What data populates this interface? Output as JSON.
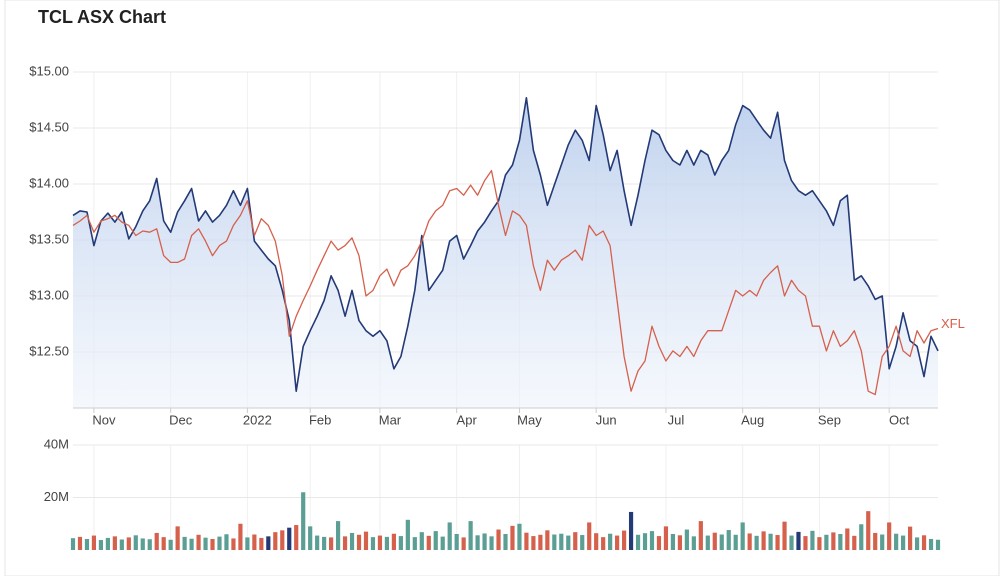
{
  "chart_data": [
    {
      "type": "line",
      "title": "TCL ASX Chart",
      "xlim": [
        0,
        124
      ],
      "xticks": [
        {
          "value": 3,
          "label": "Nov"
        },
        {
          "value": 14,
          "label": "Dec"
        },
        {
          "value": 25,
          "label": "2022"
        },
        {
          "value": 34,
          "label": "Feb"
        },
        {
          "value": 44,
          "label": "Mar"
        },
        {
          "value": 55,
          "label": "Apr"
        },
        {
          "value": 64,
          "label": "May"
        },
        {
          "value": 75,
          "label": "Jun"
        },
        {
          "value": 85,
          "label": "Jul"
        },
        {
          "value": 96,
          "label": "Aug"
        },
        {
          "value": 107,
          "label": "Sep"
        },
        {
          "value": 117,
          "label": "Oct"
        }
      ],
      "ylim": [
        12,
        15
      ],
      "yticks": [
        {
          "value": 12.5,
          "label": "$12.50"
        },
        {
          "value": 13,
          "label": "$13.00"
        },
        {
          "value": 13.5,
          "label": "$13.50"
        },
        {
          "value": 14,
          "label": "$14.00"
        },
        {
          "value": 14.5,
          "label": "$14.50"
        },
        {
          "value": 15,
          "label": "$15.00"
        }
      ],
      "grid": true,
      "series": [
        {
          "color": "#233a77",
          "fill": "#c7d6ef",
          "values": [
            13.72,
            13.76,
            13.75,
            13.45,
            13.67,
            13.74,
            13.66,
            13.75,
            13.51,
            13.62,
            13.76,
            13.85,
            14.05,
            13.67,
            13.57,
            13.75,
            13.85,
            13.96,
            13.67,
            13.76,
            13.66,
            13.72,
            13.81,
            13.94,
            13.81,
            13.96,
            13.49,
            13.41,
            13.33,
            13.27,
            13.05,
            12.78,
            12.15,
            12.55,
            12.69,
            12.82,
            12.96,
            13.18,
            13.05,
            12.82,
            13.05,
            12.78,
            12.69,
            12.64,
            12.69,
            12.6,
            12.35,
            12.46,
            12.73,
            13.05,
            13.54,
            13.05,
            13.14,
            13.23,
            13.49,
            13.54,
            13.33,
            13.45,
            13.58,
            13.66,
            13.76,
            13.85,
            14.08,
            14.17,
            14.39,
            14.77,
            14.3,
            14.08,
            13.81,
            13.99,
            14.17,
            14.35,
            14.48,
            14.39,
            14.21,
            14.7,
            14.44,
            14.12,
            14.3,
            13.94,
            13.63,
            13.9,
            14.21,
            14.48,
            14.44,
            14.3,
            14.21,
            14.17,
            14.3,
            14.17,
            14.3,
            14.26,
            14.08,
            14.21,
            14.3,
            14.53,
            14.7,
            14.66,
            14.57,
            14.48,
            14.41,
            14.64,
            14.21,
            14.03,
            13.94,
            13.9,
            13.94,
            13.85,
            13.76,
            13.63,
            13.85,
            13.9,
            13.14,
            13.18,
            13.09,
            12.97,
            13.0,
            12.35,
            12.55,
            12.85,
            12.6,
            12.55,
            12.28,
            12.64,
            12.51
          ]
        },
        {
          "name": "XFL",
          "color": "#d5604c",
          "values": [
            13.63,
            13.67,
            13.72,
            13.57,
            13.67,
            13.69,
            13.72,
            13.66,
            13.63,
            13.54,
            13.58,
            13.57,
            13.6,
            13.36,
            13.3,
            13.3,
            13.33,
            13.54,
            13.6,
            13.49,
            13.36,
            13.45,
            13.49,
            13.63,
            13.72,
            13.85,
            13.54,
            13.69,
            13.63,
            13.49,
            13.18,
            12.64,
            12.82,
            12.96,
            13.09,
            13.23,
            13.36,
            13.49,
            13.41,
            13.45,
            13.52,
            13.36,
            13.0,
            13.05,
            13.18,
            13.24,
            13.09,
            13.23,
            13.27,
            13.36,
            13.49,
            13.67,
            13.76,
            13.81,
            13.94,
            13.96,
            13.9,
            13.99,
            13.9,
            14.03,
            14.12,
            13.81,
            13.54,
            13.76,
            13.72,
            13.63,
            13.27,
            13.05,
            13.32,
            13.23,
            13.32,
            13.36,
            13.41,
            13.32,
            13.63,
            13.54,
            13.58,
            13.45,
            12.96,
            12.46,
            12.15,
            12.33,
            12.42,
            12.73,
            12.55,
            12.42,
            12.51,
            12.46,
            12.55,
            12.46,
            12.6,
            12.69,
            12.69,
            12.69,
            12.87,
            13.05,
            13.0,
            13.05,
            13.0,
            13.14,
            13.21,
            13.27,
            13.0,
            13.14,
            13.05,
            13.0,
            12.73,
            12.73,
            12.51,
            12.69,
            12.55,
            12.6,
            12.69,
            12.51,
            12.15,
            12.12,
            12.46,
            12.55,
            12.73,
            12.51,
            12.46,
            12.69,
            12.58,
            12.69,
            12.71
          ]
        }
      ]
    },
    {
      "type": "bar",
      "ylim": [
        0,
        40000000
      ],
      "yticks": [
        {
          "value": 20000000,
          "label": "20M"
        },
        {
          "value": 40000000,
          "label": "40M"
        }
      ],
      "grid": true,
      "values": [
        4500000,
        5000000,
        4200000,
        5500000,
        3800000,
        4600000,
        5200000,
        4000000,
        4800000,
        5600000,
        4400000,
        4100000,
        6500000,
        4900000,
        3900000,
        9000000,
        5000000,
        4300000,
        5800000,
        4700000,
        4200000,
        5100000,
        6000000,
        4400000,
        10000000,
        4800000,
        5900000,
        4600000,
        5200000,
        6800000,
        7500000,
        8500000,
        9500000,
        22000000,
        9000000,
        5500000,
        5000000,
        4800000,
        11000000,
        5200000,
        6500000,
        5800000,
        7000000,
        4900000,
        5500000,
        5000000,
        6200000,
        5300000,
        11500000,
        4900000,
        6800000,
        5400000,
        7200000,
        5100000,
        10500000,
        6100000,
        4800000,
        11000000,
        5600000,
        6300000,
        5200000,
        7800000,
        6100000,
        9200000,
        10000000,
        6600000,
        5300000,
        5800000,
        7500000,
        5900000,
        6200000,
        5500000,
        6800000,
        5700000,
        10500000,
        6400000,
        4900000,
        6200000,
        5500000,
        7400000,
        14500000,
        5800000,
        6400000,
        7200000,
        5300000,
        9000000,
        6100000,
        5600000,
        7800000,
        5200000,
        11000000,
        5500000,
        6600000,
        5900000,
        7600000,
        5800000,
        10500000,
        6300000,
        5400000,
        7100000,
        6200000,
        5700000,
        10800000,
        5500000,
        6900000,
        5300000,
        7300000,
        4900000,
        5800000,
        6700000,
        6100000,
        8200000,
        5400000,
        9800000,
        14800000,
        6500000,
        5900000,
        10500000,
        6200000,
        5500000,
        8900000,
        4800000,
        5600000,
        4200000,
        3900000
      ],
      "colors": [
        "#5a9e94",
        "#d5604c",
        "#5a9e94",
        "#d5604c",
        "#5a9e94",
        "#5a9e94",
        "#d5604c",
        "#5a9e94",
        "#d5604c",
        "#5a9e94",
        "#5a9e94",
        "#5a9e94",
        "#d5604c",
        "#d5604c",
        "#5a9e94",
        "#d5604c",
        "#5a9e94",
        "#5a9e94",
        "#d5604c",
        "#5a9e94",
        "#d5604c",
        "#5a9e94",
        "#5a9e94",
        "#d5604c",
        "#d5604c",
        "#5a9e94",
        "#d5604c",
        "#d5604c",
        "#233a77",
        "#d5604c",
        "#d5604c",
        "#233a77",
        "#d5604c",
        "#5a9e94",
        "#5a9e94",
        "#5a9e94",
        "#5a9e94",
        "#d5604c",
        "#5a9e94",
        "#d5604c",
        "#5a9e94",
        "#d5604c",
        "#d5604c",
        "#5a9e94",
        "#d5604c",
        "#5a9e94",
        "#d5604c",
        "#5a9e94",
        "#5a9e94",
        "#5a9e94",
        "#5a9e94",
        "#d5604c",
        "#5a9e94",
        "#5a9e94",
        "#5a9e94",
        "#5a9e94",
        "#d5604c",
        "#5a9e94",
        "#5a9e94",
        "#5a9e94",
        "#5a9e94",
        "#d5604c",
        "#5a9e94",
        "#d5604c",
        "#5a9e94",
        "#d5604c",
        "#d5604c",
        "#d5604c",
        "#d5604c",
        "#5a9e94",
        "#5a9e94",
        "#5a9e94",
        "#d5604c",
        "#5a9e94",
        "#d5604c",
        "#d5604c",
        "#d5604c",
        "#5a9e94",
        "#d5604c",
        "#d5604c",
        "#233a77",
        "#5a9e94",
        "#5a9e94",
        "#5a9e94",
        "#d5604c",
        "#d5604c",
        "#5a9e94",
        "#d5604c",
        "#5a9e94",
        "#5a9e94",
        "#d5604c",
        "#5a9e94",
        "#d5604c",
        "#5a9e94",
        "#5a9e94",
        "#5a9e94",
        "#5a9e94",
        "#d5604c",
        "#5a9e94",
        "#d5604c",
        "#5a9e94",
        "#d5604c",
        "#d5604c",
        "#5a9e94",
        "#233a77",
        "#d5604c",
        "#5a9e94",
        "#d5604c",
        "#5a9e94",
        "#d5604c",
        "#5a9e94",
        "#d5604c",
        "#d5604c",
        "#5a9e94",
        "#d5604c",
        "#d5604c",
        "#5a9e94",
        "#d5604c",
        "#5a9e94",
        "#5a9e94",
        "#d5604c",
        "#5a9e94",
        "#d5604c",
        "#5a9e94",
        "#5a9e94"
      ]
    }
  ]
}
